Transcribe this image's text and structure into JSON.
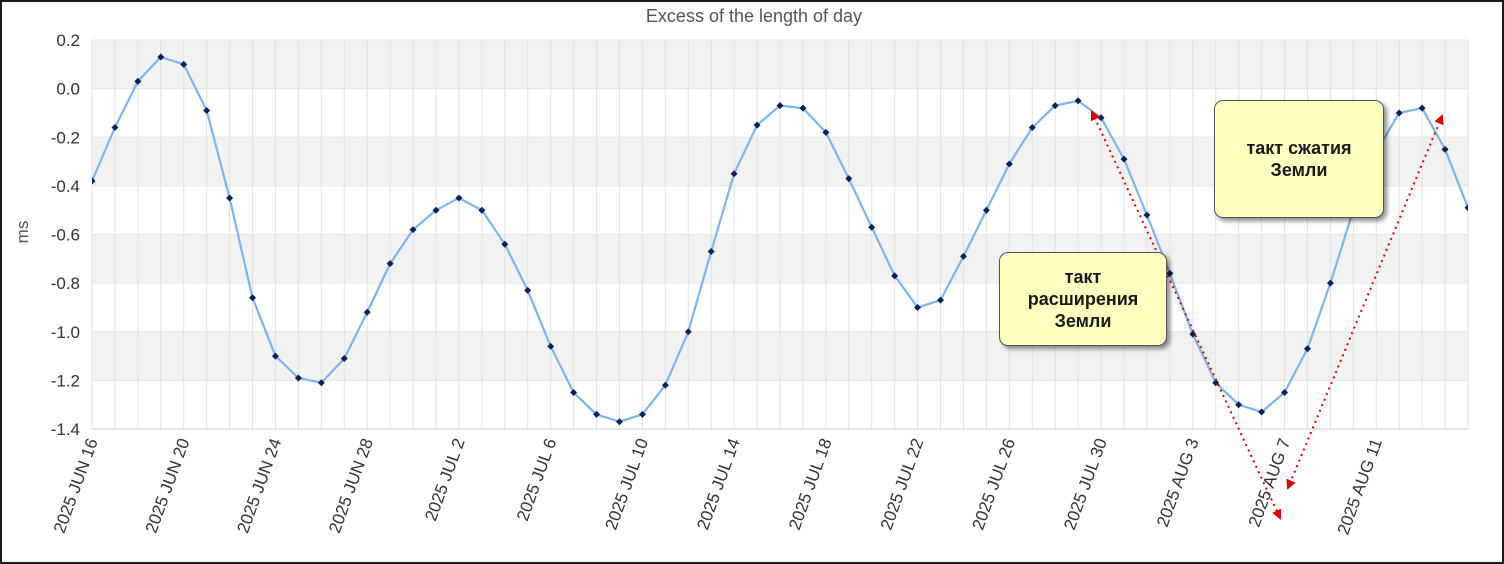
{
  "chart_data": {
    "type": "line",
    "title": "Excess of the length of day",
    "ylabel": "ms",
    "xlabel": "",
    "ylim": [
      -1.4,
      0.2
    ],
    "yticks": [
      "0.2",
      "0.0",
      "-0.2",
      "-0.4",
      "-0.6",
      "-0.8",
      "-1.0",
      "-1.2",
      "-1.4"
    ],
    "xticks": [
      "2025 JUN 16",
      "2025 JUN 20",
      "2025 JUN 24",
      "2025 JUN 28",
      "2025 JUL 2",
      "2025 JUL 6",
      "2025 JUL 10",
      "2025 JUL 14",
      "2025 JUL 18",
      "2025 JUL 22",
      "2025 JUL 26",
      "2025 JUL 30",
      "2025 AUG 3",
      "2025 AUG 7",
      "2025 AUG 11"
    ],
    "xlim": [
      "2025-06-16",
      "2025-08-15"
    ],
    "grid": true,
    "line_color": "#7cb5ec",
    "marker_color": "#0d1f5c",
    "series": [
      {
        "x": [
          "2025-06-16",
          "2025-06-17",
          "2025-06-18",
          "2025-06-19",
          "2025-06-20",
          "2025-06-21",
          "2025-06-22",
          "2025-06-23",
          "2025-06-24",
          "2025-06-25",
          "2025-06-26",
          "2025-06-27",
          "2025-06-28",
          "2025-06-29",
          "2025-06-30",
          "2025-07-01",
          "2025-07-02",
          "2025-07-03",
          "2025-07-04",
          "2025-07-05",
          "2025-07-06",
          "2025-07-07",
          "2025-07-08",
          "2025-07-09",
          "2025-07-10",
          "2025-07-11",
          "2025-07-12",
          "2025-07-13",
          "2025-07-14",
          "2025-07-15",
          "2025-07-16",
          "2025-07-17",
          "2025-07-18",
          "2025-07-19",
          "2025-07-20",
          "2025-07-21",
          "2025-07-22",
          "2025-07-23",
          "2025-07-24",
          "2025-07-25",
          "2025-07-26",
          "2025-07-27",
          "2025-07-28",
          "2025-07-29",
          "2025-07-30",
          "2025-07-31",
          "2025-08-01",
          "2025-08-02",
          "2025-08-03",
          "2025-08-04",
          "2025-08-05",
          "2025-08-06",
          "2025-08-07",
          "2025-08-08",
          "2025-08-09",
          "2025-08-10",
          "2025-08-11",
          "2025-08-12",
          "2025-08-13",
          "2025-08-14",
          "2025-08-15"
        ],
        "values": [
          -0.38,
          -0.16,
          0.03,
          0.13,
          0.1,
          -0.09,
          -0.45,
          -0.86,
          -1.1,
          -1.19,
          -1.21,
          -1.11,
          -0.92,
          -0.72,
          -0.58,
          -0.5,
          -0.45,
          -0.5,
          -0.64,
          -0.83,
          -1.06,
          -1.25,
          -1.34,
          -1.37,
          -1.34,
          -1.22,
          -1.0,
          -0.67,
          -0.35,
          -0.15,
          -0.07,
          -0.08,
          -0.18,
          -0.37,
          -0.57,
          -0.77,
          -0.9,
          -0.87,
          -0.69,
          -0.5,
          -0.31,
          -0.16,
          -0.07,
          -0.05,
          -0.12,
          -0.29,
          -0.52,
          -0.76,
          -1.01,
          -1.21,
          -1.3,
          -1.33,
          -1.25,
          -1.07,
          -0.8,
          -0.5,
          -0.26,
          -0.1,
          -0.08,
          -0.25,
          -0.49
        ]
      }
    ],
    "annotations": [
      {
        "lines": [
          "такт",
          "расширения",
          "Земли"
        ],
        "arrow_color": "#e00000"
      },
      {
        "lines": [
          "такт сжатия",
          "Земли"
        ],
        "arrow_color": "#e00000"
      }
    ]
  }
}
